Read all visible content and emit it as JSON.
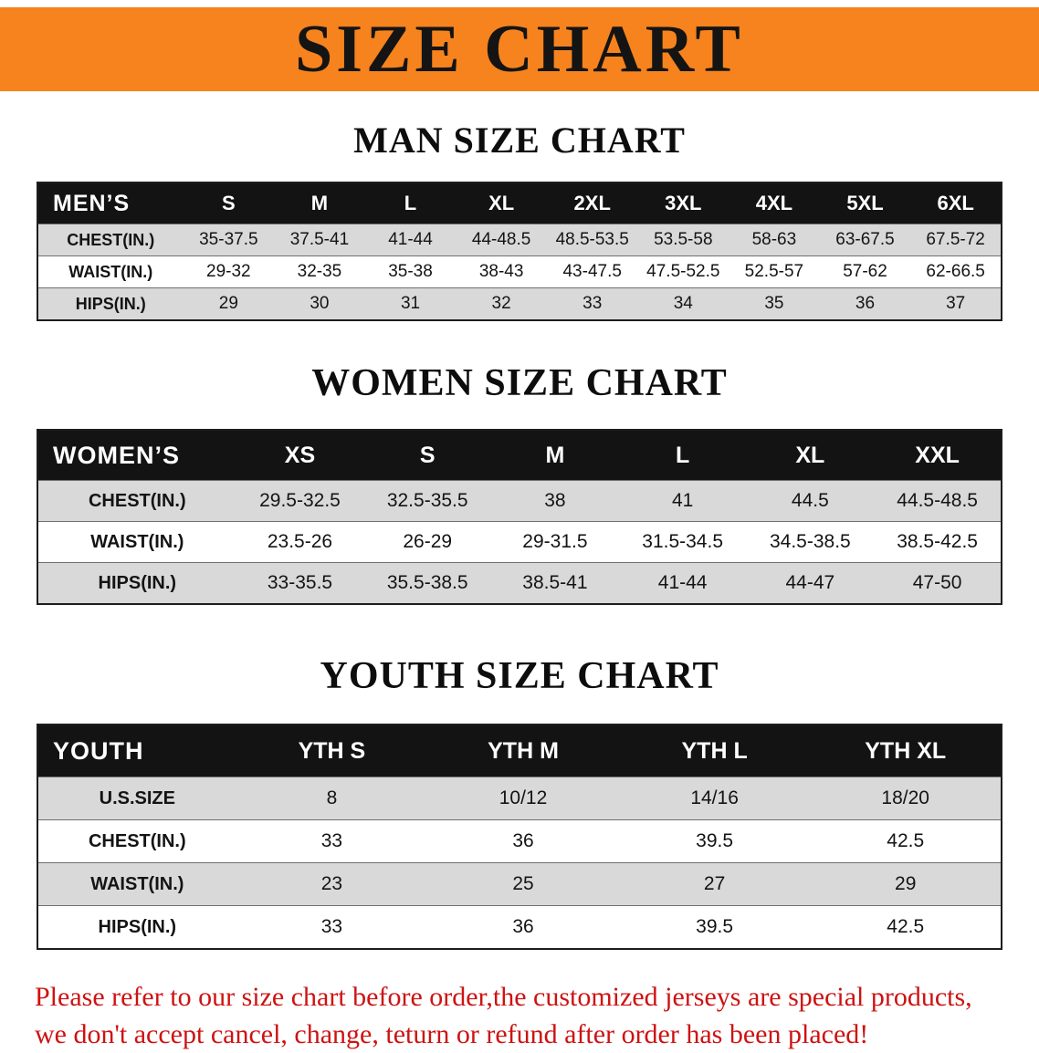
{
  "banner": {
    "title": "SIZE CHART",
    "background_color": "#f6831d",
    "text_color": "#141414"
  },
  "colors": {
    "table_header_bg": "#131313",
    "table_header_text": "#ffffff",
    "stripe_row_bg": "#d9d9d9",
    "disclaimer_text": "#ce1212"
  },
  "tables": [
    {
      "section_title": "MAN SIZE CHART",
      "corner_label": "MEN’S",
      "columns": [
        "S",
        "M",
        "L",
        "XL",
        "2XL",
        "3XL",
        "4XL",
        "5XL",
        "6XL"
      ],
      "rows": [
        {
          "label": "CHEST(IN.)",
          "values": [
            "35-37.5",
            "37.5-41",
            "41-44",
            "44-48.5",
            "48.5-53.5",
            "53.5-58",
            "58-63",
            "63-67.5",
            "67.5-72"
          ]
        },
        {
          "label": "WAIST(IN.)",
          "values": [
            "29-32",
            "32-35",
            "35-38",
            "38-43",
            "43-47.5",
            "47.5-52.5",
            "52.5-57",
            "57-62",
            "62-66.5"
          ]
        },
        {
          "label": "HIPS(IN.)",
          "values": [
            "29",
            "30",
            "31",
            "32",
            "33",
            "34",
            "35",
            "36",
            "37"
          ]
        }
      ]
    },
    {
      "section_title": "WOMEN SIZE CHART",
      "corner_label": "WOMEN’S",
      "columns": [
        "XS",
        "S",
        "M",
        "L",
        "XL",
        "XXL"
      ],
      "rows": [
        {
          "label": "CHEST(IN.)",
          "values": [
            "29.5-32.5",
            "32.5-35.5",
            "38",
            "41",
            "44.5",
            "44.5-48.5"
          ]
        },
        {
          "label": "WAIST(IN.)",
          "values": [
            "23.5-26",
            "26-29",
            "29-31.5",
            "31.5-34.5",
            "34.5-38.5",
            "38.5-42.5"
          ]
        },
        {
          "label": "HIPS(IN.)",
          "values": [
            "33-35.5",
            "35.5-38.5",
            "38.5-41",
            "41-44",
            "44-47",
            "47-50"
          ]
        }
      ]
    },
    {
      "section_title": "YOUTH SIZE CHART",
      "corner_label": "YOUTH",
      "columns": [
        "YTH S",
        "YTH M",
        "YTH L",
        "YTH XL"
      ],
      "rows": [
        {
          "label": "U.S.SIZE",
          "values": [
            "8",
            "10/12",
            "14/16",
            "18/20"
          ]
        },
        {
          "label": "CHEST(IN.)",
          "values": [
            "33",
            "36",
            "39.5",
            "42.5"
          ]
        },
        {
          "label": "WAIST(IN.)",
          "values": [
            "23",
            "25",
            "27",
            "29"
          ]
        },
        {
          "label": "HIPS(IN.)",
          "values": [
            "33",
            "36",
            "39.5",
            "42.5"
          ]
        }
      ]
    }
  ],
  "footer": {
    "lines": [
      "Please refer to our size chart before order,the customized jerseys are special products,",
      "we don't accept cancel, change, teturn or refund after order has been placed!"
    ]
  }
}
